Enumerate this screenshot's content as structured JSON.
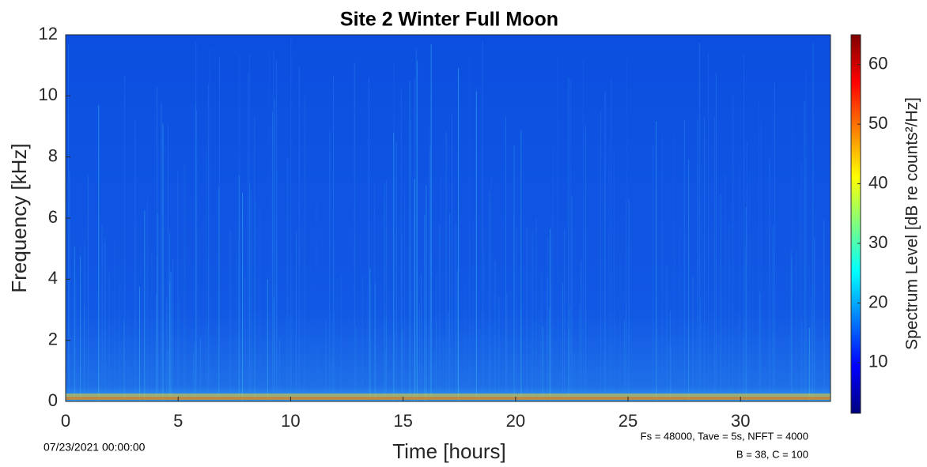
{
  "chart_data": {
    "type": "spectrogram",
    "title": "Site 2 Winter Full Moon",
    "x_label": "Time [hours]",
    "y_label": "Frequency [kHz]",
    "xlim": [
      0,
      34
    ],
    "xticks": [
      0,
      5,
      10,
      15,
      20,
      25,
      30
    ],
    "ylim": [
      0,
      12
    ],
    "yticks": [
      0,
      2,
      4,
      6,
      8,
      10,
      12
    ],
    "colormap": "jet",
    "colorbar": {
      "label": "Spectrum Level [dB re counts²/Hz]",
      "clim": [
        1.5,
        65
      ],
      "ticks": [
        10,
        20,
        30,
        40,
        50,
        60
      ]
    },
    "annotations": [
      "07/23/2021 00:00:00",
      "Fs = 48000, Tave = 5s, NFFT = 4000",
      "B = 38, C = 100"
    ]
  }
}
